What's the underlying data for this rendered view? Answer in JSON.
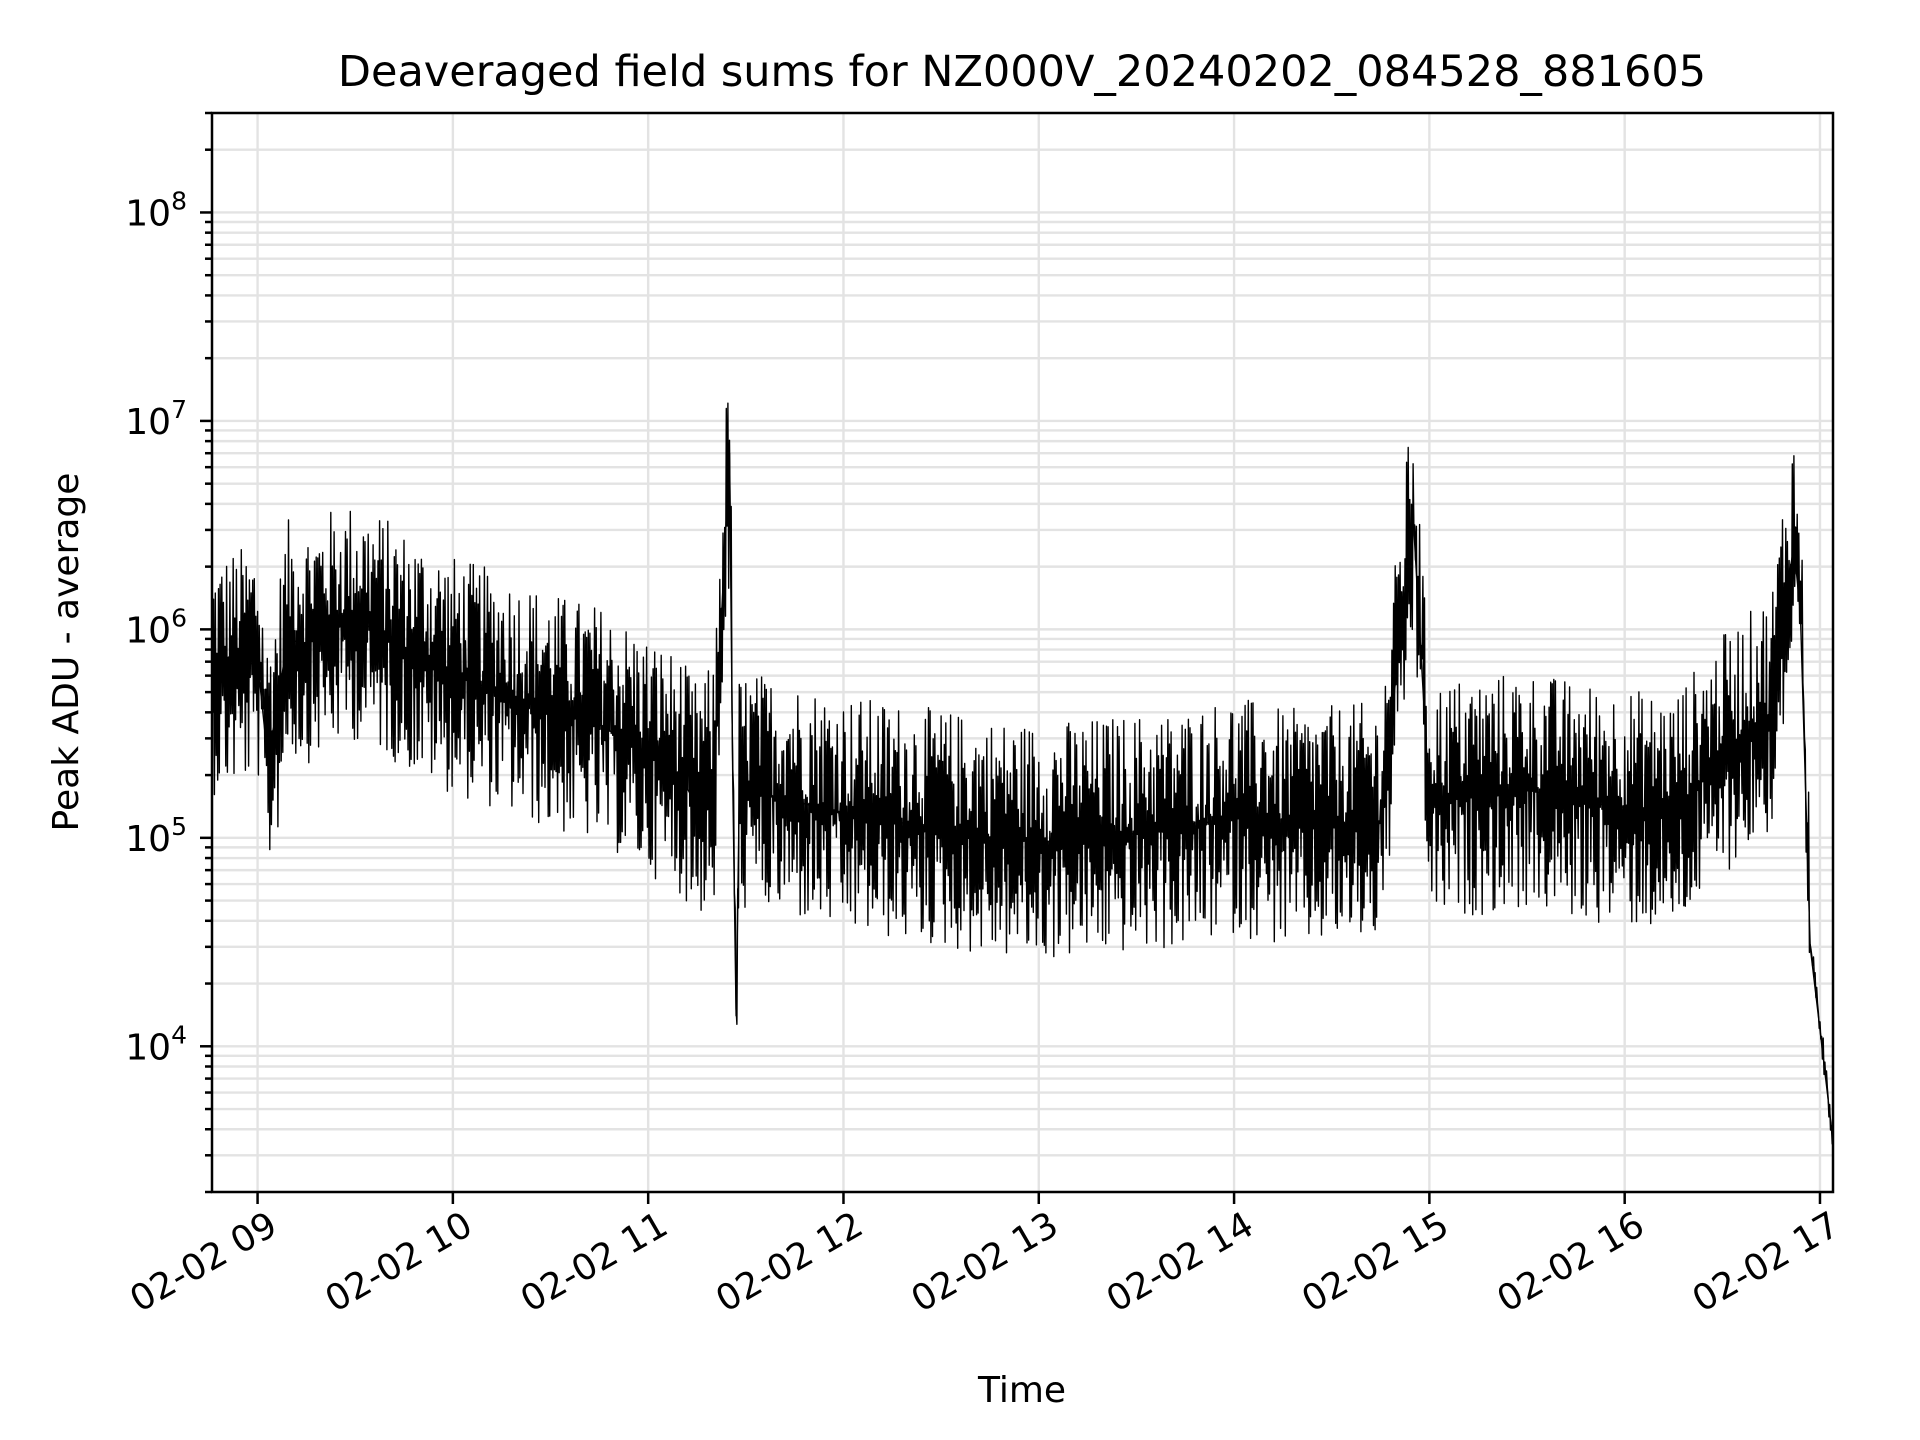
{
  "chart_data": {
    "type": "line",
    "title": "Deaveraged field sums for NZ000V_20240202_084528_881605",
    "xlabel": "Time",
    "ylabel": "Peak ADU - average",
    "yscale": "log",
    "ylim": [
      2000,
      300000000
    ],
    "xlim": [
      "2024-02-02 08:46",
      "2024-02-02 17:04"
    ],
    "grid": true,
    "x_ticks": [
      "02-02 09",
      "02-02 10",
      "02-02 11",
      "02-02 12",
      "02-02 13",
      "02-02 14",
      "02-02 15",
      "02-02 16",
      "02-02 17"
    ],
    "y_ticks": [
      {
        "base": "10",
        "exp": "4",
        "value": 10000
      },
      {
        "base": "10",
        "exp": "5",
        "value": 100000
      },
      {
        "base": "10",
        "exp": "6",
        "value": 1000000
      },
      {
        "base": "10",
        "exp": "7",
        "value": 10000000
      },
      {
        "base": "10",
        "exp": "8",
        "value": 100000000
      }
    ],
    "series": [
      {
        "color": "#000000",
        "x": [
          "2024-02-02 08:46",
          "2024-02-02 08:53",
          "2024-02-02 09:00",
          "2024-02-02 09:03",
          "2024-02-02 09:06",
          "2024-02-02 09:09",
          "2024-02-02 09:15",
          "2024-02-02 09:22",
          "2024-02-02 09:30",
          "2024-02-02 09:36",
          "2024-02-02 09:45",
          "2024-02-02 10:00",
          "2024-02-02 10:15",
          "2024-02-02 10:30",
          "2024-02-02 10:45",
          "2024-02-02 11:00",
          "2024-02-02 11:10",
          "2024-02-02 11:14",
          "2024-02-02 11:20",
          "2024-02-02 11:25",
          "2024-02-02 11:26",
          "2024-02-02 11:27",
          "2024-02-02 11:28",
          "2024-02-02 11:30",
          "2024-02-02 11:45",
          "2024-02-02 12:00",
          "2024-02-02 12:15",
          "2024-02-02 12:30",
          "2024-02-02 12:45",
          "2024-02-02 13:00",
          "2024-02-02 13:15",
          "2024-02-02 13:30",
          "2024-02-02 13:45",
          "2024-02-02 14:00",
          "2024-02-02 14:15",
          "2024-02-02 14:30",
          "2024-02-02 14:45",
          "2024-02-02 14:55",
          "2024-02-02 15:00",
          "2024-02-02 15:15",
          "2024-02-02 15:30",
          "2024-02-02 15:45",
          "2024-02-02 16:00",
          "2024-02-02 16:15",
          "2024-02-02 16:30",
          "2024-02-02 16:45",
          "2024-02-02 16:49",
          "2024-02-02 16:52",
          "2024-02-02 16:54",
          "2024-02-02 16:57",
          "2024-02-02 17:00",
          "2024-02-02 17:04"
        ],
        "y": [
          600000,
          650000,
          700000,
          250000,
          400000,
          900000,
          850000,
          1000000,
          1100000,
          1000000,
          800000,
          600000,
          500000,
          400000,
          350000,
          250000,
          200000,
          150000,
          180000,
          7000000,
          180000,
          14000,
          160000,
          170000,
          150000,
          130000,
          120000,
          110000,
          100000,
          95000,
          100000,
          105000,
          110000,
          130000,
          110000,
          115000,
          120000,
          3500000,
          150000,
          160000,
          170000,
          150000,
          140000,
          130000,
          250000,
          400000,
          1300000,
          2500000,
          1200000,
          30000,
          12000,
          3500
        ]
      }
    ]
  }
}
